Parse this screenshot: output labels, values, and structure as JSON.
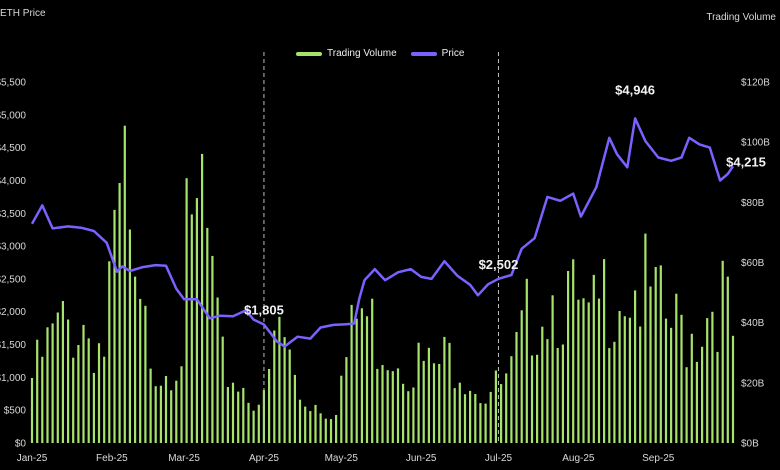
{
  "chart_data": {
    "type": "bar+line",
    "left_axis_title": "ETH Price",
    "right_axis_title": "Trading Volume",
    "legend": [
      {
        "name": "Trading Volume",
        "color": "#a6e36a"
      },
      {
        "name": "Price",
        "color": "#7b61ff"
      }
    ],
    "x_labels": [
      "Jan-25",
      "Feb-25",
      "Mar-25",
      "Apr-25",
      "May-25",
      "Jun-25",
      "Jul-25",
      "Aug-25",
      "Sep-25"
    ],
    "left_ticks": [
      "$0",
      "$500",
      "$1,000",
      "$1,500",
      "$2,000",
      "$2,500",
      "$3,000",
      "$3,500",
      "$4,000",
      "$4,500",
      "$5,000",
      "$5,500"
    ],
    "right_ticks": [
      "$0B",
      "$20B",
      "$40B",
      "$60B",
      "$80B",
      "$100B",
      "$120B"
    ],
    "ylim_price": [
      0,
      5500
    ],
    "ylim_volume": [
      0,
      120
    ],
    "vlines": [
      "Apr-25",
      "Jul-25"
    ],
    "annotations": [
      {
        "label": "$1,805",
        "x": "2025-04-01",
        "y": 1805
      },
      {
        "label": "$2,502",
        "x": "2025-07-01",
        "y": 2502
      },
      {
        "label": "$4,946",
        "x": "2025-08-23",
        "y": 4946
      },
      {
        "label": "$4,215",
        "x": "2025-09-25",
        "y": 4215
      }
    ],
    "price_series": [
      [
        "2025-01-01",
        3340
      ],
      [
        "2025-01-05",
        3620
      ],
      [
        "2025-01-09",
        3270
      ],
      [
        "2025-01-15",
        3300
      ],
      [
        "2025-01-20",
        3280
      ],
      [
        "2025-01-25",
        3230
      ],
      [
        "2025-01-30",
        3050
      ],
      [
        "2025-02-03",
        2610
      ],
      [
        "2025-02-05",
        2690
      ],
      [
        "2025-02-08",
        2620
      ],
      [
        "2025-02-13",
        2680
      ],
      [
        "2025-02-18",
        2710
      ],
      [
        "2025-02-22",
        2700
      ],
      [
        "2025-02-26",
        2350
      ],
      [
        "2025-03-01",
        2190
      ],
      [
        "2025-03-06",
        2190
      ],
      [
        "2025-03-11",
        1900
      ],
      [
        "2025-03-15",
        1940
      ],
      [
        "2025-03-20",
        1930
      ],
      [
        "2025-03-25",
        2020
      ],
      [
        "2025-03-28",
        1880
      ],
      [
        "2025-04-01",
        1805
      ],
      [
        "2025-04-06",
        1550
      ],
      [
        "2025-04-09",
        1470
      ],
      [
        "2025-04-14",
        1620
      ],
      [
        "2025-04-19",
        1590
      ],
      [
        "2025-04-23",
        1760
      ],
      [
        "2025-04-28",
        1800
      ],
      [
        "2025-05-03",
        1810
      ],
      [
        "2025-05-06",
        1820
      ],
      [
        "2025-05-08",
        2200
      ],
      [
        "2025-05-10",
        2480
      ],
      [
        "2025-05-14",
        2650
      ],
      [
        "2025-05-18",
        2480
      ],
      [
        "2025-05-23",
        2600
      ],
      [
        "2025-05-28",
        2650
      ],
      [
        "2025-06-01",
        2530
      ],
      [
        "2025-06-05",
        2500
      ],
      [
        "2025-06-10",
        2770
      ],
      [
        "2025-06-15",
        2550
      ],
      [
        "2025-06-20",
        2410
      ],
      [
        "2025-06-23",
        2250
      ],
      [
        "2025-06-27",
        2420
      ],
      [
        "2025-07-01",
        2502
      ],
      [
        "2025-07-06",
        2560
      ],
      [
        "2025-07-10",
        2960
      ],
      [
        "2025-07-15",
        3120
      ],
      [
        "2025-07-20",
        3750
      ],
      [
        "2025-07-25",
        3690
      ],
      [
        "2025-07-30",
        3800
      ],
      [
        "2025-08-02",
        3450
      ],
      [
        "2025-08-08",
        3900
      ],
      [
        "2025-08-13",
        4650
      ],
      [
        "2025-08-16",
        4400
      ],
      [
        "2025-08-20",
        4200
      ],
      [
        "2025-08-23",
        4946
      ],
      [
        "2025-08-27",
        4600
      ],
      [
        "2025-09-01",
        4350
      ],
      [
        "2025-09-06",
        4300
      ],
      [
        "2025-09-10",
        4350
      ],
      [
        "2025-09-13",
        4650
      ],
      [
        "2025-09-17",
        4550
      ],
      [
        "2025-09-21",
        4500
      ],
      [
        "2025-09-25",
        4000
      ],
      [
        "2025-09-28",
        4100
      ],
      [
        "2025-09-30",
        4215
      ]
    ],
    "volume_anchors": [
      [
        "2025-01-01",
        18
      ],
      [
        "2025-01-10",
        30
      ],
      [
        "2025-01-20",
        34
      ],
      [
        "2025-01-30",
        25
      ],
      [
        "2025-02-03",
        95
      ],
      [
        "2025-02-10",
        35
      ],
      [
        "2025-02-20",
        22
      ],
      [
        "2025-02-28",
        28
      ],
      [
        "2025-03-05",
        88
      ],
      [
        "2025-03-15",
        22
      ],
      [
        "2025-03-25",
        15
      ],
      [
        "2025-04-01",
        11
      ],
      [
        "2025-04-07",
        33
      ],
      [
        "2025-04-15",
        13
      ],
      [
        "2025-04-28",
        9
      ],
      [
        "2025-05-08",
        37
      ],
      [
        "2025-05-15",
        30
      ],
      [
        "2025-05-25",
        25
      ],
      [
        "2025-06-05",
        20
      ],
      [
        "2025-06-15",
        25
      ],
      [
        "2025-06-25",
        14
      ],
      [
        "2025-07-05",
        16
      ],
      [
        "2025-07-15",
        40
      ],
      [
        "2025-07-25",
        43
      ],
      [
        "2025-08-05",
        30
      ],
      [
        "2025-08-15",
        47
      ],
      [
        "2025-08-25",
        43
      ],
      [
        "2025-09-05",
        32
      ],
      [
        "2025-09-15",
        31
      ],
      [
        "2025-09-25",
        44
      ],
      [
        "2025-09-30",
        28
      ]
    ]
  }
}
